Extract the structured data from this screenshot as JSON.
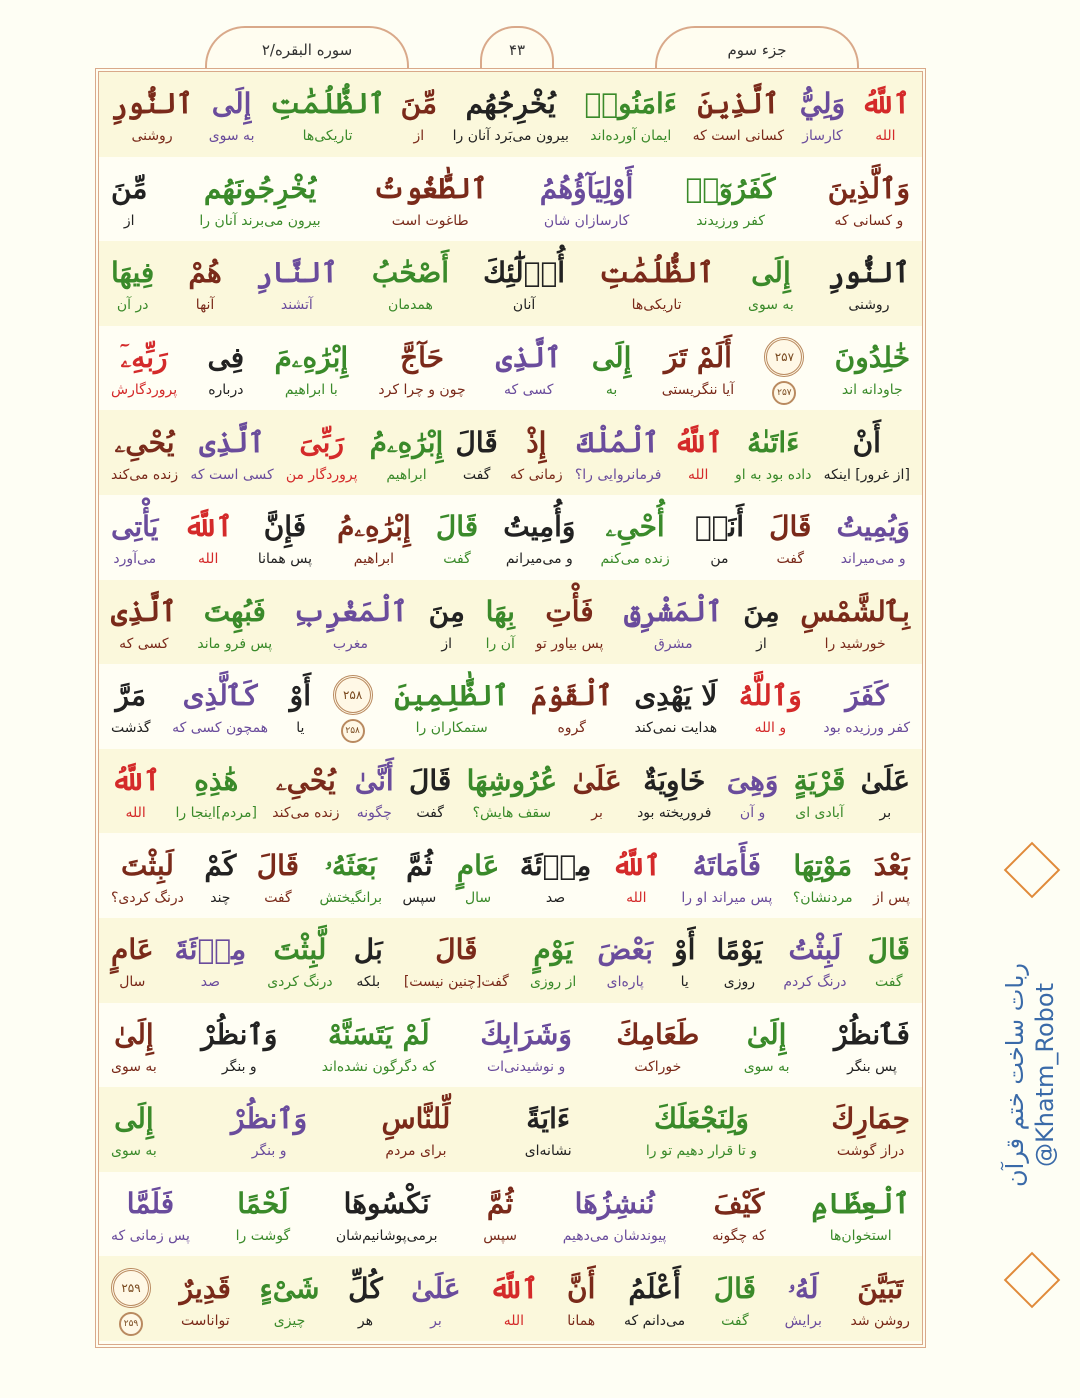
{
  "header": {
    "juz": "جزء سوم",
    "page_number": "۴۳",
    "surah": "سوره البقره/۲"
  },
  "side_text": {
    "line1": "ربات ساخت ختم قرآن",
    "line2": "@Khatm_Robot"
  },
  "colors": {
    "red": "#d42a2a",
    "purple": "#6a4c9c",
    "brown": "#7a2a1a",
    "green": "#3a8a2a",
    "black": "#222222",
    "blue": "#2a3a7a",
    "frame": "#d9a98a"
  },
  "rows": [
    {
      "words": [
        {
          "ar": "ٱللَّهُ",
          "fa": "الله",
          "c": "red"
        },
        {
          "ar": "وَلِيُّ",
          "fa": "کارساز",
          "c": "purple"
        },
        {
          "ar": "ٱلَّذِينَ",
          "fa": "کسانی است که",
          "c": "brown"
        },
        {
          "ar": "ءَامَنُوا۟",
          "fa": "ایمان آورده‌اند",
          "c": "green"
        },
        {
          "ar": "يُخْرِجُهُم",
          "fa": "بیرون می‌بَرد آنان را",
          "c": "black"
        },
        {
          "ar": "مِّنَ",
          "fa": "از",
          "c": "brown"
        },
        {
          "ar": "ٱلظُّلُمَٰتِ",
          "fa": "تاریکی‌ها",
          "c": "green"
        },
        {
          "ar": "إِلَى",
          "fa": "به سوی",
          "c": "purple"
        },
        {
          "ar": "ٱلنُّورِ",
          "fa": "روشنی",
          "c": "brown"
        }
      ]
    },
    {
      "words": [
        {
          "ar": "وَٱلَّذِينَ",
          "fa": "و کسانی که",
          "c": "brown"
        },
        {
          "ar": "كَفَرُوٓا۟",
          "fa": "کفر ورزیدند",
          "c": "green"
        },
        {
          "ar": "أَوْلِيَآؤُهُمُ",
          "fa": "کارسازان شان",
          "c": "purple"
        },
        {
          "ar": "ٱلطَّٰغُوتُ",
          "fa": "طاغوت است",
          "c": "brown"
        },
        {
          "ar": "يُخْرِجُونَهُم",
          "fa": "بیرون می‌برند آنان را",
          "c": "green"
        },
        {
          "ar": "مِّنَ",
          "fa": "از",
          "c": "black"
        }
      ]
    },
    {
      "words": [
        {
          "ar": "ٱلنُّورِ",
          "fa": "روشنی",
          "c": "black"
        },
        {
          "ar": "إِلَى",
          "fa": "به سوی",
          "c": "green"
        },
        {
          "ar": "ٱلظُّلُمَٰتِ",
          "fa": "تاریکی‌ها",
          "c": "brown"
        },
        {
          "ar": "أُو۟لَٰٓئِكَ",
          "fa": "آنان",
          "c": "black"
        },
        {
          "ar": "أَصْحَٰبُ",
          "fa": "همدمان",
          "c": "green"
        },
        {
          "ar": "ٱلنَّارِ",
          "fa": "آتشند",
          "c": "purple"
        },
        {
          "ar": "هُمْ",
          "fa": "آنها",
          "c": "brown"
        },
        {
          "ar": "فِيهَا",
          "fa": "در آن",
          "c": "green"
        }
      ]
    },
    {
      "words": [
        {
          "ar": "خَٰلِدُونَ",
          "fa": "جاودانه اند",
          "c": "green"
        },
        {
          "marker": true,
          "ar": "۲۵۷",
          "fa": "۲۵۷"
        },
        {
          "ar": "أَلَمْ تَرَ",
          "fa": "آیا ننگریستی",
          "c": "brown"
        },
        {
          "ar": "إِلَى",
          "fa": "به",
          "c": "green"
        },
        {
          "ar": "ٱلَّذِى",
          "fa": "کسی که",
          "c": "purple"
        },
        {
          "ar": "حَآجَّ",
          "fa": "چون و چرا کرد",
          "c": "brown"
        },
        {
          "ar": "إِبْرَٰهِۦمَ",
          "fa": "با ابراهیم",
          "c": "green"
        },
        {
          "ar": "فِى",
          "fa": "درباره",
          "c": "black"
        },
        {
          "ar": "رَبِّهِۦٓ",
          "fa": "پروردگارش",
          "c": "red"
        }
      ]
    },
    {
      "words": [
        {
          "ar": "أَنْ",
          "fa": "[از غرور] اینکه",
          "c": "black"
        },
        {
          "ar": "ءَاتَىٰهُ",
          "fa": "داده بود به او",
          "c": "green"
        },
        {
          "ar": "ٱللَّهُ",
          "fa": "الله",
          "c": "red"
        },
        {
          "ar": "ٱلْمُلْكَ",
          "fa": "فرمانروایی را؟",
          "c": "purple"
        },
        {
          "ar": "إِذْ",
          "fa": "زمانی که",
          "c": "brown"
        },
        {
          "ar": "قَالَ",
          "fa": "گفت",
          "c": "black"
        },
        {
          "ar": "إِبْرَٰهِۦمُ",
          "fa": "ابراهیم",
          "c": "green"
        },
        {
          "ar": "رَبِّىَ",
          "fa": "پروردگار من",
          "c": "red"
        },
        {
          "ar": "ٱلَّذِى",
          "fa": "کسی است که",
          "c": "purple"
        },
        {
          "ar": "يُحْىِۦ",
          "fa": "زنده می‌کند",
          "c": "brown"
        }
      ]
    },
    {
      "words": [
        {
          "ar": "وَيُمِيتُ",
          "fa": "و می‌میراند",
          "c": "purple"
        },
        {
          "ar": "قَالَ",
          "fa": "گفت",
          "c": "brown"
        },
        {
          "ar": "أَنَا۠",
          "fa": "من",
          "c": "black"
        },
        {
          "ar": "أُحْىِۦ",
          "fa": "زنده می‌کنم",
          "c": "green"
        },
        {
          "ar": "وَأُمِيتُ",
          "fa": "و می‌میرانم",
          "c": "black"
        },
        {
          "ar": "قَالَ",
          "fa": "گفت",
          "c": "green"
        },
        {
          "ar": "إِبْرَٰهِۦمُ",
          "fa": "ابراهیم",
          "c": "brown"
        },
        {
          "ar": "فَإِنَّ",
          "fa": "پس همانا",
          "c": "black"
        },
        {
          "ar": "ٱللَّهَ",
          "fa": "الله",
          "c": "red"
        },
        {
          "ar": "يَأْتِى",
          "fa": "می‌آورد",
          "c": "purple"
        }
      ]
    },
    {
      "words": [
        {
          "ar": "بِٱلشَّمْسِ",
          "fa": "خورشید را",
          "c": "brown"
        },
        {
          "ar": "مِنَ",
          "fa": "از",
          "c": "black"
        },
        {
          "ar": "ٱلْمَشْرِقِ",
          "fa": "مشرق",
          "c": "purple"
        },
        {
          "ar": "فَأْتِ",
          "fa": "پس بیاور تو",
          "c": "brown"
        },
        {
          "ar": "بِهَا",
          "fa": "آن را",
          "c": "green"
        },
        {
          "ar": "مِنَ",
          "fa": "از",
          "c": "black"
        },
        {
          "ar": "ٱلْمَغْرِبِ",
          "fa": "مغرب",
          "c": "purple"
        },
        {
          "ar": "فَبُهِتَ",
          "fa": "پس فرو ماند",
          "c": "green"
        },
        {
          "ar": "ٱلَّذِى",
          "fa": "کسی که",
          "c": "brown"
        }
      ]
    },
    {
      "words": [
        {
          "ar": "كَفَرَ",
          "fa": "کفر ورزیده بود",
          "c": "purple"
        },
        {
          "ar": "وَٱللَّهُ",
          "fa": "و الله",
          "c": "red"
        },
        {
          "ar": "لَا يَهْدِى",
          "fa": "هدایت نمی‌کند",
          "c": "black"
        },
        {
          "ar": "ٱلْقَوْمَ",
          "fa": "گروه",
          "c": "brown"
        },
        {
          "ar": "ٱلظَّٰلِمِينَ",
          "fa": "ستمکاران را",
          "c": "green"
        },
        {
          "marker": true,
          "ar": "۲۵۸",
          "fa": "۲۵۸"
        },
        {
          "ar": "أَوْ",
          "fa": "یا",
          "c": "black"
        },
        {
          "ar": "كَٱلَّذِى",
          "fa": "همچون کسی که",
          "c": "purple"
        },
        {
          "ar": "مَرَّ",
          "fa": "گذشت",
          "c": "black"
        }
      ]
    },
    {
      "words": [
        {
          "ar": "عَلَىٰ",
          "fa": "بر",
          "c": "black"
        },
        {
          "ar": "قَرْيَةٍ",
          "fa": "آبادی ای",
          "c": "green"
        },
        {
          "ar": "وَهِىَ",
          "fa": "و آن",
          "c": "purple"
        },
        {
          "ar": "خَاوِيَةٌ",
          "fa": "فروریخته بود",
          "c": "black"
        },
        {
          "ar": "عَلَىٰ",
          "fa": "بر",
          "c": "brown"
        },
        {
          "ar": "عُرُوشِهَا",
          "fa": "سقف هایش؟",
          "c": "green"
        },
        {
          "ar": "قَالَ",
          "fa": "گفت",
          "c": "black"
        },
        {
          "ar": "أَنَّىٰ",
          "fa": "چگونه",
          "c": "purple"
        },
        {
          "ar": "يُحْىِۦ",
          "fa": "زنده می‌کند",
          "c": "brown"
        },
        {
          "ar": "هَٰذِهِ",
          "fa": "[مردم]اینجا را",
          "c": "green"
        },
        {
          "ar": "ٱللَّهُ",
          "fa": "الله",
          "c": "red"
        }
      ]
    },
    {
      "words": [
        {
          "ar": "بَعْدَ",
          "fa": "پس از",
          "c": "brown"
        },
        {
          "ar": "مَوْتِهَا",
          "fa": "مردنشان؟",
          "c": "green"
        },
        {
          "ar": "فَأَمَاتَهُ",
          "fa": "پس میراند او را",
          "c": "purple"
        },
        {
          "ar": "ٱللَّهُ",
          "fa": "الله",
          "c": "red"
        },
        {
          "ar": "مِا۟ئَةَ",
          "fa": "صد",
          "c": "black"
        },
        {
          "ar": "عَامٍ",
          "fa": "سال",
          "c": "green"
        },
        {
          "ar": "ثُمَّ",
          "fa": "سپس",
          "c": "black"
        },
        {
          "ar": "بَعَثَهُۥ",
          "fa": "برانگیختش",
          "c": "green"
        },
        {
          "ar": "قَالَ",
          "fa": "گفت",
          "c": "brown"
        },
        {
          "ar": "كَمْ",
          "fa": "چند",
          "c": "black"
        },
        {
          "ar": "لَبِثْتَ",
          "fa": "درنگ کردی؟",
          "c": "brown"
        }
      ]
    },
    {
      "words": [
        {
          "ar": "قَالَ",
          "fa": "گفت",
          "c": "green"
        },
        {
          "ar": "لَبِثْتُ",
          "fa": "درنگ کردم",
          "c": "purple"
        },
        {
          "ar": "يَوْمًا",
          "fa": "روزی",
          "c": "black"
        },
        {
          "ar": "أَوْ",
          "fa": "یا",
          "c": "black"
        },
        {
          "ar": "بَعْضَ",
          "fa": "پاره‌ای",
          "c": "purple"
        },
        {
          "ar": "يَوْمٍ",
          "fa": "از روزی",
          "c": "green"
        },
        {
          "ar": "قَالَ",
          "fa": "گفت[چنین نیست]",
          "c": "brown"
        },
        {
          "ar": "بَل",
          "fa": "بلکه",
          "c": "black"
        },
        {
          "ar": "لَّبِثْتَ",
          "fa": "درنگ کردی",
          "c": "green"
        },
        {
          "ar": "مِا۟ئَةَ",
          "fa": "صد",
          "c": "purple"
        },
        {
          "ar": "عَامٍ",
          "fa": "سال",
          "c": "brown"
        }
      ]
    },
    {
      "words": [
        {
          "ar": "فَٱنظُرْ",
          "fa": "پس بنگر",
          "c": "black"
        },
        {
          "ar": "إِلَىٰ",
          "fa": "به سوی",
          "c": "green"
        },
        {
          "ar": "طَعَامِكَ",
          "fa": "خوراکت",
          "c": "brown"
        },
        {
          "ar": "وَشَرَابِكَ",
          "fa": "و نوشیدنی‌ات",
          "c": "purple"
        },
        {
          "ar": "لَمْ يَتَسَنَّهْ",
          "fa": "که دگرگون نشده‌اند",
          "c": "green"
        },
        {
          "ar": "وَٱنظُرْ",
          "fa": "و بنگر",
          "c": "black"
        },
        {
          "ar": "إِلَىٰ",
          "fa": "به سوی",
          "c": "brown"
        }
      ]
    },
    {
      "words": [
        {
          "ar": "حِمَارِكَ",
          "fa": "دراز گوشت",
          "c": "brown"
        },
        {
          "ar": "وَلِنَجْعَلَكَ",
          "fa": "و تا قرار دهیم تو را",
          "c": "green"
        },
        {
          "ar": "ءَايَةً",
          "fa": "نشانه‌ای",
          "c": "black"
        },
        {
          "ar": "لِّلنَّاسِ",
          "fa": "برای مردم",
          "c": "brown"
        },
        {
          "ar": "وَٱنظُرْ",
          "fa": "و بنگر",
          "c": "purple"
        },
        {
          "ar": "إِلَى",
          "fa": "به سوی",
          "c": "green"
        }
      ]
    },
    {
      "words": [
        {
          "ar": "ٱلْعِظَامِ",
          "fa": "استخوان‌ها",
          "c": "green"
        },
        {
          "ar": "كَيْفَ",
          "fa": "که چگونه",
          "c": "brown"
        },
        {
          "ar": "نُنشِزُهَا",
          "fa": "پیوندشان می‌دهیم",
          "c": "purple"
        },
        {
          "ar": "ثُمَّ",
          "fa": "سپس",
          "c": "brown"
        },
        {
          "ar": "نَكْسُوهَا",
          "fa": "برمی‌پوشانیم‌شان",
          "c": "black"
        },
        {
          "ar": "لَحْمًا",
          "fa": "گوشت را",
          "c": "green"
        },
        {
          "ar": "فَلَمَّا",
          "fa": "پس زمانی که",
          "c": "purple"
        }
      ]
    },
    {
      "words": [
        {
          "ar": "تَبَيَّنَ",
          "fa": "روشن شد",
          "c": "brown"
        },
        {
          "ar": "لَهُۥ",
          "fa": "برایش",
          "c": "purple"
        },
        {
          "ar": "قَالَ",
          "fa": "گفت",
          "c": "green"
        },
        {
          "ar": "أَعْلَمُ",
          "fa": "می‌دانم که",
          "c": "black"
        },
        {
          "ar": "أَنَّ",
          "fa": "همانا",
          "c": "brown"
        },
        {
          "ar": "ٱللَّهَ",
          "fa": "الله",
          "c": "red"
        },
        {
          "ar": "عَلَىٰ",
          "fa": "بر",
          "c": "purple"
        },
        {
          "ar": "كُلِّ",
          "fa": "هر",
          "c": "black"
        },
        {
          "ar": "شَىْءٍ",
          "fa": "چیزی",
          "c": "green"
        },
        {
          "ar": "قَدِيرٌ",
          "fa": "تواناست",
          "c": "brown"
        },
        {
          "marker": true,
          "ar": "۲۵۹",
          "fa": "۲۵۹"
        }
      ]
    }
  ]
}
